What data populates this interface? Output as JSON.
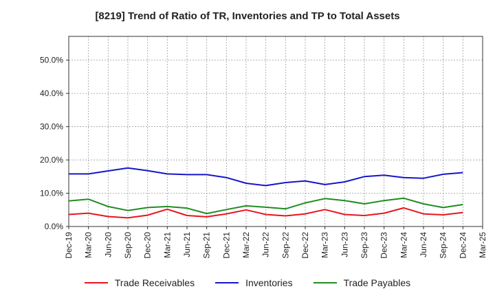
{
  "chart_data": {
    "type": "line",
    "title": "[8219]  Trend of Ratio of TR, Inventories and TP to Total Assets",
    "xlabel": "",
    "ylabel": "",
    "ylim": [
      0,
      0.5714
    ],
    "y_ticks": [
      0,
      0.1,
      0.2,
      0.3,
      0.4,
      0.5
    ],
    "y_tick_labels": [
      "0.0%",
      "10.0%",
      "20.0%",
      "30.0%",
      "40.0%",
      "50.0%"
    ],
    "x_tick_labels": [
      "Dec-19",
      "Mar-20",
      "Jun-20",
      "Sep-20",
      "Dec-20",
      "Mar-21",
      "Jun-21",
      "Sep-21",
      "Dec-21",
      "Mar-22",
      "Jun-22",
      "Sep-22",
      "Dec-22",
      "Mar-23",
      "Jun-23",
      "Sep-23",
      "Dec-23",
      "Mar-24",
      "Jun-24",
      "Sep-24",
      "Dec-24",
      "Mar-25"
    ],
    "x": [
      "Dec-19",
      "Mar-20",
      "Jun-20",
      "Sep-20",
      "Dec-20",
      "Mar-21",
      "Jun-21",
      "Sep-21",
      "Dec-21",
      "Mar-22",
      "Jun-22",
      "Sep-22",
      "Dec-22",
      "Mar-23",
      "Jun-23",
      "Sep-23",
      "Dec-23",
      "Mar-24",
      "Jun-24",
      "Sep-24",
      "Dec-24"
    ],
    "grid": true,
    "legend_position": "bottom",
    "series": [
      {
        "name": "Trade Receivables",
        "color": "#e8141c",
        "values": [
          0.036,
          0.04,
          0.03,
          0.026,
          0.034,
          0.052,
          0.033,
          0.029,
          0.038,
          0.05,
          0.036,
          0.032,
          0.038,
          0.051,
          0.036,
          0.033,
          0.04,
          0.056,
          0.038,
          0.035,
          0.042
        ]
      },
      {
        "name": "Inventories",
        "color": "#1414cc",
        "values": [
          0.158,
          0.158,
          0.167,
          0.176,
          0.168,
          0.158,
          0.156,
          0.156,
          0.147,
          0.13,
          0.123,
          0.132,
          0.137,
          0.126,
          0.134,
          0.15,
          0.154,
          0.147,
          0.145,
          0.157,
          0.162
        ]
      },
      {
        "name": "Trade Payables",
        "color": "#1e8c1e",
        "values": [
          0.077,
          0.082,
          0.06,
          0.048,
          0.057,
          0.06,
          0.055,
          0.039,
          0.051,
          0.062,
          0.058,
          0.053,
          0.071,
          0.084,
          0.078,
          0.068,
          0.078,
          0.085,
          0.068,
          0.057,
          0.066
        ]
      }
    ]
  }
}
